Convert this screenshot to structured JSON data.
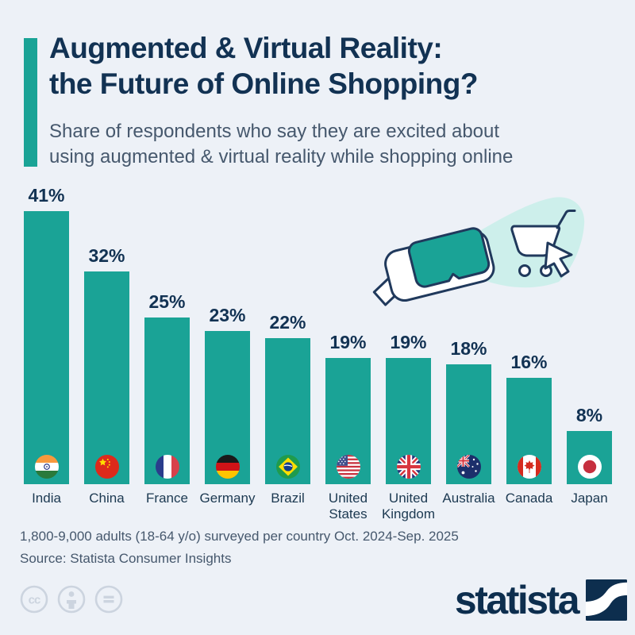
{
  "colors": {
    "background": "#edf1f7",
    "teal": "#1aa396",
    "beam": "#cdefeb",
    "navy": "#123253",
    "subtitle_gray": "#46586d",
    "license_gray": "#ccd4df",
    "logo_navy": "#0d2e4e",
    "outline_navy": "#20395c"
  },
  "header": {
    "title_line1": "Augmented & Virtual Reality:",
    "title_line2": "the Future of Online Shopping?",
    "subtitle_line1": "Share of respondents who say they are excited about",
    "subtitle_line2": "using augmented & virtual reality while shopping online"
  },
  "chart_data": {
    "type": "bar",
    "title": "Augmented & Virtual Reality: the Future of Online Shopping?",
    "subtitle": "Share of respondents who say they are excited about using augmented & virtual reality while shopping online",
    "categories": [
      "India",
      "China",
      "France",
      "Germany",
      "Brazil",
      "United States",
      "United Kingdom",
      "Australia",
      "Canada",
      "Japan"
    ],
    "values": [
      41,
      32,
      25,
      23,
      22,
      19,
      19,
      18,
      16,
      8
    ],
    "unit": "%",
    "flags": [
      "india",
      "china",
      "france",
      "germany",
      "brazil",
      "united-states",
      "united-kingdom",
      "australia",
      "canada",
      "japan"
    ],
    "bar_color": "#1aa396",
    "xlabel": "",
    "ylabel": "",
    "ylim": [
      0,
      45
    ],
    "grid": false,
    "legend": false,
    "value_labels_shown": true
  },
  "illustration": {
    "name": "vr-headset-beaming-shopping-cart",
    "parts": [
      "vr-headset-icon",
      "light-beam-shape",
      "shopping-cart-icon",
      "mouse-cursor-icon"
    ]
  },
  "footer": {
    "note": "1,800-9,000 adults (18-64 y/o) surveyed per country Oct. 2024-Sep. 2025",
    "source": "Source: Statista Consumer Insights",
    "license_icons": [
      "cc-icon",
      "attribution-person-icon",
      "equals-icon"
    ],
    "logo_text": "statista"
  }
}
